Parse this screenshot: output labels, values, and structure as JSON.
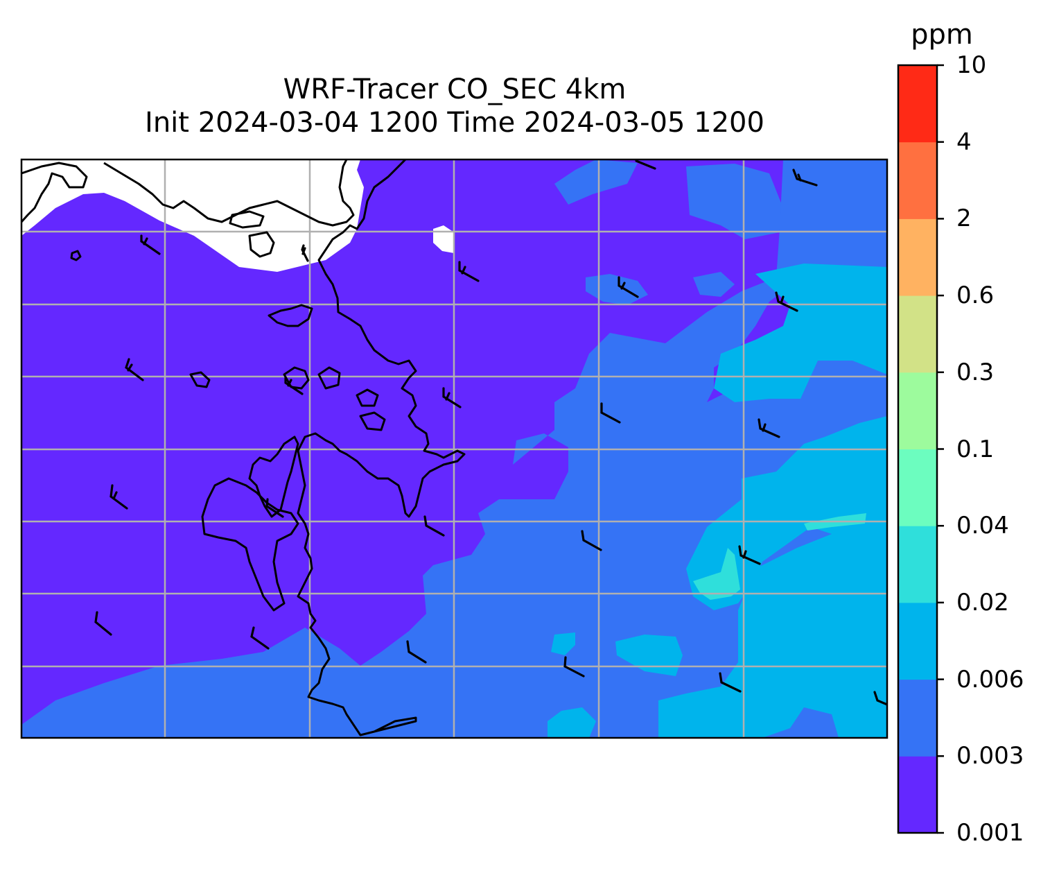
{
  "title": {
    "line1": "WRF-Tracer CO_SEC 4km",
    "line2": "Init 2024-03-04 1200 Time 2024-03-05 1200"
  },
  "colorbar": {
    "units": "ppm",
    "levels": [
      "0.001",
      "0.003",
      "0.006",
      "0.02",
      "0.04",
      "0.1",
      "0.3",
      "0.6",
      "2",
      "4",
      "10"
    ],
    "colors": [
      "#6428ff",
      "#3573f5",
      "#00b4ec",
      "#2fdfdb",
      "#6cfdbf",
      "#9dfb9d",
      "#d2e287",
      "#ffb261",
      "#ff7040",
      "#ff2a16"
    ]
  },
  "map": {
    "background_field": "#6428ff",
    "no_data": "#ffffff",
    "coastline_color": "#000000",
    "gridline_color": "#b0b0b0",
    "wind_barb_color": "#000000"
  }
}
